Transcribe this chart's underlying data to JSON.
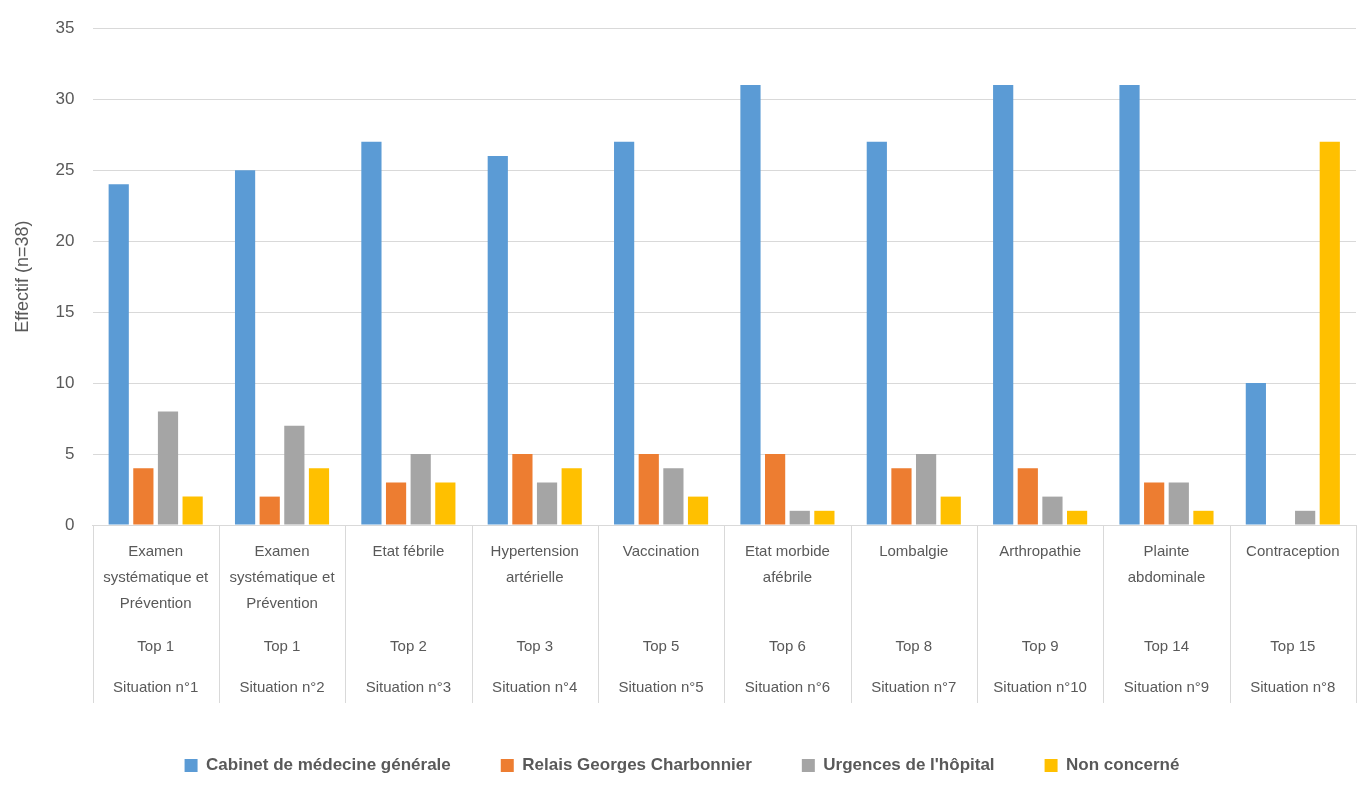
{
  "chart_data": {
    "type": "bar",
    "ylabel": "Effectif (n=38)",
    "categories": [
      "Examen systématique et Prévention\nTop 1\nSituation n°1",
      "Examen systématique et Prévention\nTop 1\nSituation n°2",
      "Etat fébrile\nTop 2\nSituation n°3",
      "Hypertension artérielle\nTop 3\nSituation n°4",
      "Vaccination\nTop 5\nSituation n°5",
      "Etat morbide afébrile\nTop 6\nSituation n°6",
      "Lombalgie\nTop 8\nSituation n°7",
      "Arthropathie\nTop 9\nSituation n°10",
      "Plainte abdominale\nTop 14\nSituation n°9",
      "Contraception\nTop 15\nSituation n°8"
    ],
    "series": [
      {
        "name": "Cabinet de médecine générale",
        "color": "#5b9bd5",
        "values": [
          24,
          25,
          27,
          26,
          27,
          31,
          27,
          31,
          31,
          10
        ]
      },
      {
        "name": "Relais Georges Charbonnier",
        "color": "#ed7d31",
        "values": [
          4,
          2,
          3,
          5,
          5,
          5,
          4,
          4,
          3,
          0
        ]
      },
      {
        "name": "Urgences de l'hôpital",
        "color": "#a5a5a5",
        "values": [
          8,
          7,
          5,
          3,
          4,
          1,
          5,
          2,
          3,
          1
        ]
      },
      {
        "name": "Non concerné",
        "color": "#ffc000",
        "values": [
          2,
          4,
          3,
          4,
          2,
          1,
          2,
          1,
          1,
          27
        ]
      }
    ],
    "ylim": [
      0,
      35
    ],
    "yticks": [
      0,
      5,
      10,
      15,
      20,
      25,
      30,
      35
    ],
    "grid": "y",
    "legend": "bottom"
  }
}
